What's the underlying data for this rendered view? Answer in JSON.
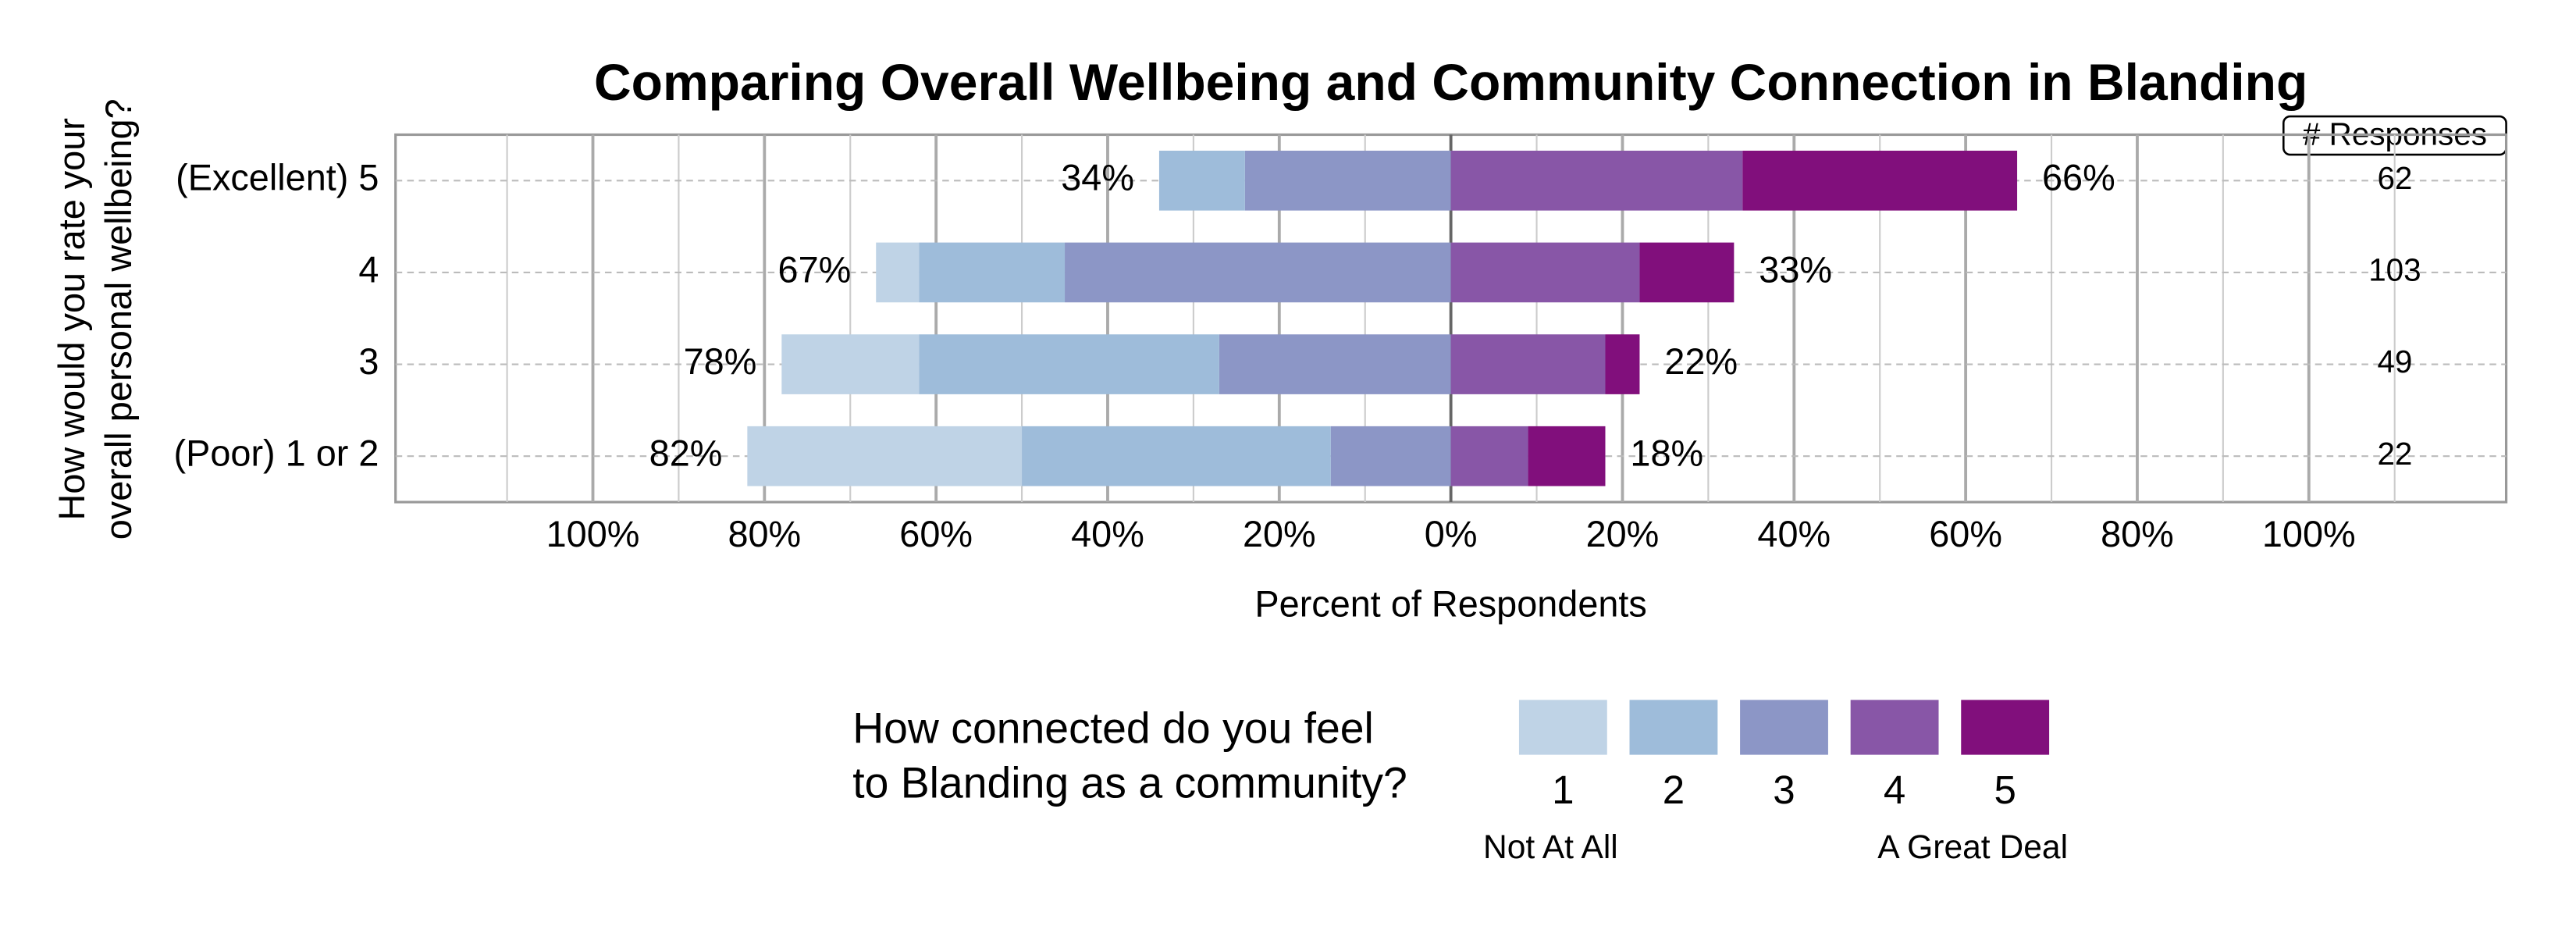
{
  "chart_data": {
    "type": "diverging-bar",
    "title": "Comparing Overall Wellbeing and Community Connection in Blanding",
    "y_label": [
      "How would you rate your",
      "overall personal wellbeing?"
    ],
    "x_label": "Percent of Respondents",
    "categories": [
      "(Excellent) 5",
      "4",
      "3",
      "(Poor) 1 or 2"
    ],
    "series": [
      {
        "name": "1",
        "color": "#bfd3e6",
        "side": "left",
        "values": [
          0,
          5,
          16,
          32
        ]
      },
      {
        "name": "2",
        "color": "#9ebcda",
        "side": "left",
        "values": [
          10,
          17,
          35,
          36
        ]
      },
      {
        "name": "3",
        "color": "#8c96c6",
        "side": "left",
        "values": [
          24,
          45,
          27,
          14
        ]
      },
      {
        "name": "4",
        "color": "#8856a7",
        "side": "right",
        "values": [
          34,
          22,
          18,
          9
        ]
      },
      {
        "name": "5",
        "color": "#810f7c",
        "side": "right",
        "values": [
          32,
          11,
          4,
          9
        ]
      }
    ],
    "left_totals": {
      "values": [
        34,
        67,
        78,
        82
      ],
      "value_labels": [
        "34%",
        "67%",
        "78%",
        "82%"
      ]
    },
    "right_totals": {
      "values": [
        66,
        33,
        22,
        18
      ],
      "value_labels": [
        "66%",
        "33%",
        "22%",
        "18%"
      ]
    },
    "responses": {
      "header": "# Responses",
      "values": [
        62,
        103,
        49,
        22
      ]
    },
    "xlim": [
      -123,
      123
    ],
    "xticks": [
      {
        "value": -100,
        "label": "100%"
      },
      {
        "value": -80,
        "label": "80%"
      },
      {
        "value": -60,
        "label": "60%"
      },
      {
        "value": -40,
        "label": "40%"
      },
      {
        "value": -20,
        "label": "20%"
      },
      {
        "value": 0,
        "label": "0%"
      },
      {
        "value": 20,
        "label": "20%"
      },
      {
        "value": 40,
        "label": "40%"
      },
      {
        "value": 60,
        "label": "60%"
      },
      {
        "value": 80,
        "label": "80%"
      },
      {
        "value": 100,
        "label": "100%"
      }
    ],
    "minor_xticks": [
      -110,
      -90,
      -70,
      -50,
      -30,
      -10,
      10,
      30,
      50,
      70,
      90,
      110
    ],
    "grid": true,
    "legend": {
      "title": [
        "How connected do you feel",
        "to Blanding as a community?"
      ],
      "low_label": "Not At All",
      "high_label": "A Great Deal"
    }
  }
}
